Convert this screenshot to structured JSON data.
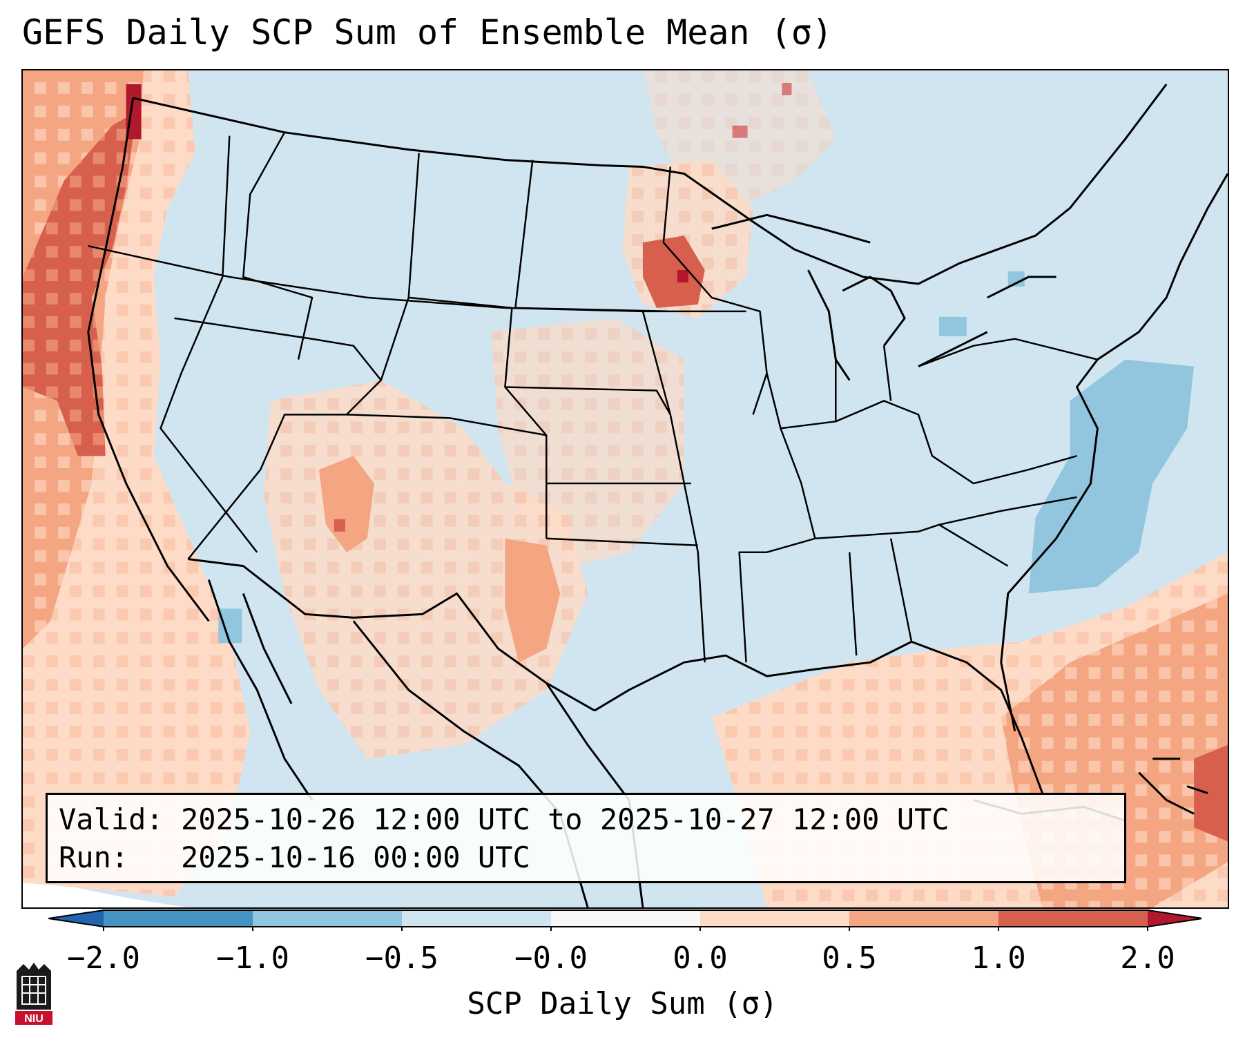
{
  "title": "GEFS Daily SCP Sum of Ensemble Mean (σ)",
  "info": {
    "valid_line": "Valid: 2025-10-26 12:00 UTC to 2025-10-27 12:00 UTC",
    "run_line": "Run:   2025-10-16 00:00 UTC"
  },
  "colorbar": {
    "label": "SCP Daily Sum (σ)",
    "ticks": [
      "−2.0",
      "−1.0",
      "−0.5",
      "−0.0",
      "0.0",
      "0.5",
      "1.0",
      "2.0"
    ],
    "bins": [
      {
        "range": "< −2.0",
        "color": "#2166ac"
      },
      {
        "range": "−2.0 to −1.0",
        "color": "#4393c3"
      },
      {
        "range": "−1.0 to −0.5",
        "color": "#92c5de"
      },
      {
        "range": "−0.5 to −0.0",
        "color": "#d1e5f0"
      },
      {
        "range": "−0.0 to 0.0",
        "color": "#f7f7f7"
      },
      {
        "range": "0.0 to 0.5",
        "color": "#fddbc7"
      },
      {
        "range": "0.5 to 1.0",
        "color": "#f4a582"
      },
      {
        "range": "1.0 to 2.0",
        "color": "#d6604d"
      },
      {
        "range": "> 2.0",
        "color": "#b2182b"
      }
    ]
  },
  "map": {
    "background_category": "−0.5 to −0.0",
    "regions": [
      {
        "name": "Pacific coast and offshore",
        "category": "0.5 to 1.0"
      },
      {
        "name": "Northern California and Oregon coast",
        "category": "1.0 to 2.0"
      },
      {
        "name": "Southwest US (Arizona, New Mexico)",
        "category": "0.0 to 0.5"
      },
      {
        "name": "Western Texas",
        "category": "0.0 to 0.5"
      },
      {
        "name": "Minnesota / Upper Midwest",
        "category": "1.0 to 2.0"
      },
      {
        "name": "Mid-Atlantic offshore",
        "category": "−1.0 to −0.5"
      },
      {
        "name": "Gulf of Mexico and Florida",
        "category": "0.0 to 0.5"
      },
      {
        "name": "Western Atlantic / Bahamas",
        "category": "0.5 to 1.0"
      }
    ]
  },
  "logo": {
    "text": "NIU"
  }
}
